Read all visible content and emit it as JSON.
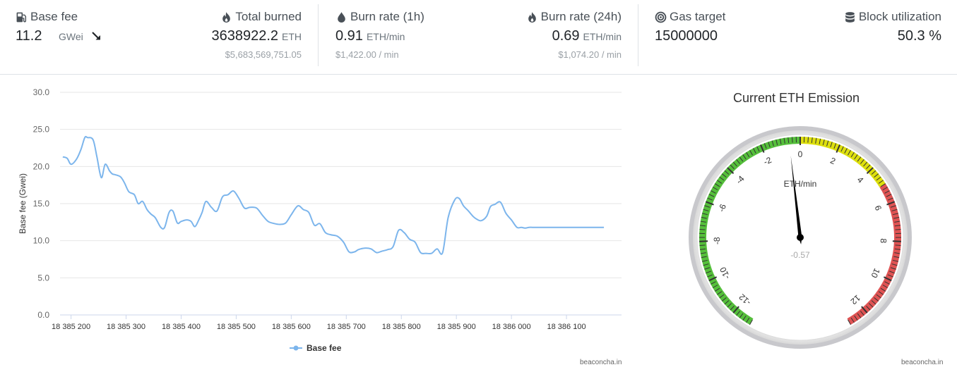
{
  "stats": {
    "base_fee": {
      "label": "Base fee",
      "value": "11.2",
      "unit": "GWei",
      "trend_icon": "arrow-down-right-icon"
    },
    "total_burned": {
      "label": "Total burned",
      "value": "3638922.2",
      "unit": "ETH",
      "sub": "$5,683,569,751.05"
    },
    "burn_rate_1h": {
      "label": "Burn rate (1h)",
      "value": "0.91",
      "unit": "ETH/min",
      "sub": "$1,422.00 / min"
    },
    "burn_rate_24h": {
      "label": "Burn rate (24h)",
      "value": "0.69",
      "unit": "ETH/min",
      "sub": "$1,074.20 / min"
    },
    "gas_target": {
      "label": "Gas target",
      "value": "15000000"
    },
    "block_utilization": {
      "label": "Block utilization",
      "value": "50.3 %"
    }
  },
  "chart_data": [
    {
      "type": "line",
      "title": "",
      "xlabel": "",
      "ylabel": "Base fee (Gwei)",
      "ylim": [
        0,
        30
      ],
      "yticks": [
        "0.0",
        "5.0",
        "10.0",
        "15.0",
        "20.0",
        "25.0",
        "30.0"
      ],
      "xlim": [
        18385180,
        18386200
      ],
      "xticks": [
        {
          "value": 18385200,
          "label": "18 385 200"
        },
        {
          "value": 18385300,
          "label": "18 385 300"
        },
        {
          "value": 18385400,
          "label": "18 385 400"
        },
        {
          "value": 18385500,
          "label": "18 385 500"
        },
        {
          "value": 18385600,
          "label": "18 385 600"
        },
        {
          "value": 18385700,
          "label": "18 385 700"
        },
        {
          "value": 18385800,
          "label": "18 385 800"
        },
        {
          "value": 18385900,
          "label": "18 385 900"
        },
        {
          "value": 18386000,
          "label": "18 386 000"
        },
        {
          "value": 18386100,
          "label": "18 386 100"
        }
      ],
      "grid": true,
      "legend": "bottom",
      "series": [
        {
          "name": "Base fee",
          "color": "#7cb5ec",
          "x": [
            18385185,
            18385193,
            18385200,
            18385210,
            18385218,
            18385225,
            18385230,
            18385240,
            18385247,
            18385255,
            18385262,
            18385270,
            18385275,
            18385280,
            18385290,
            18385297,
            18385305,
            18385315,
            18385322,
            18385330,
            18385338,
            18385345,
            18385353,
            18385363,
            18385370,
            18385378,
            18385385,
            18385393,
            18385400,
            18385410,
            18385418,
            18385425,
            18385432,
            18385438,
            18385445,
            18385455,
            18385465,
            18385475,
            18385485,
            18385495,
            18385505,
            18385515,
            18385525,
            18385537,
            18385548,
            18385558,
            18385570,
            18385580,
            18385590,
            18385600,
            18385612,
            18385622,
            18385632,
            18385642,
            18385652,
            18385662,
            18385672,
            18385684,
            18385695,
            18385705,
            18385715,
            18385722,
            18385733,
            18385745,
            18385755,
            18385765,
            18385775,
            18385785,
            18385795,
            18385805,
            18385815,
            18385825,
            18385835,
            18385845,
            18385855,
            18385865,
            18385875,
            18385885,
            18385897,
            18385905,
            18385913,
            18385922,
            18385930,
            18385937,
            18385945,
            18385955,
            18385962,
            18385970,
            18385980,
            18385990,
            18386000,
            18386010,
            18386018,
            18386025,
            18386032,
            18386038,
            18386045,
            18386055,
            18386065,
            18386075,
            18386085,
            18386093,
            18386100,
            18386110,
            18386118,
            18386125,
            18386135,
            18386145,
            18386152,
            18386160,
            18386168
          ],
          "values": [
            21.3,
            21.1,
            20.3,
            21.0,
            22.3,
            23.9,
            23.9,
            23.6,
            21.3,
            18.5,
            20.3,
            19.4,
            19.0,
            18.9,
            18.6,
            17.8,
            16.6,
            16.2,
            15.0,
            15.3,
            14.2,
            13.6,
            13.1,
            11.8,
            11.8,
            13.8,
            14.0,
            12.4,
            12.6,
            12.8,
            12.6,
            11.9,
            12.8,
            13.8,
            15.3,
            14.5,
            14.0,
            15.9,
            16.2,
            16.7,
            15.7,
            14.4,
            14.5,
            14.4,
            13.4,
            12.6,
            12.3,
            12.2,
            12.4,
            13.5,
            14.7,
            14.2,
            13.8,
            12.1,
            12.3,
            11.1,
            10.8,
            10.6,
            9.8,
            8.5,
            8.5,
            8.8,
            9.0,
            8.9,
            8.4,
            8.6,
            8.8,
            9.2,
            11.4,
            11.1,
            10.2,
            9.8,
            8.4,
            8.3,
            8.3,
            8.9,
            8.4,
            13.1,
            15.5,
            15.7,
            14.7,
            14.0,
            13.3,
            12.9,
            12.7,
            13.3,
            14.6,
            14.9,
            15.2,
            13.7,
            12.8,
            11.8,
            11.8,
            11.7,
            11.8,
            11.8,
            11.8,
            11.8,
            11.8,
            11.8,
            11.8,
            11.8,
            11.8,
            11.8,
            11.8,
            11.8,
            11.8,
            11.8,
            11.8,
            11.8,
            11.8
          ]
        }
      ]
    },
    {
      "type": "gauge",
      "title": "Current ETH Emission",
      "unit_label": "ETH/min",
      "min": -13,
      "max": 13,
      "value": -0.57,
      "value_label": "-0.57",
      "tick_labels": [
        "-12",
        "-10",
        "-8",
        "-6",
        "-4",
        "-2",
        "0",
        "2",
        "4",
        "6",
        "8",
        "10",
        "12"
      ],
      "bands": [
        {
          "from": -13,
          "to": 0,
          "color": "#55bf3b"
        },
        {
          "from": 0,
          "to": 5,
          "color": "#dddf0d"
        },
        {
          "from": 5,
          "to": 13,
          "color": "#df5353"
        }
      ]
    }
  ],
  "credits": {
    "chart": "beaconcha.in",
    "gauge": "beaconcha.in"
  }
}
